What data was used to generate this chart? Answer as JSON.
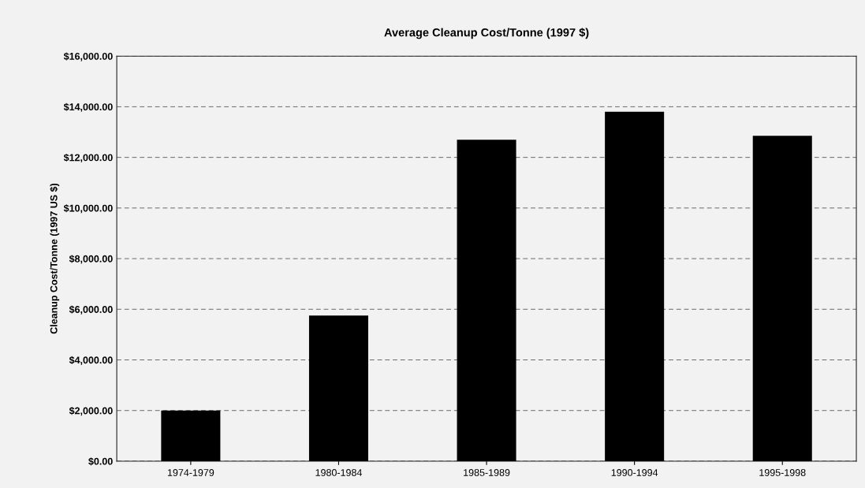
{
  "chart_data": {
    "type": "bar",
    "title": "Average Cleanup Cost/Tonne (1997 $)",
    "ylabel": "Cleanup Cost/Tonne (1997 US $)",
    "categories": [
      "1974-1979",
      "1980-1984",
      "1985-1989",
      "1990-1994",
      "1995-1998"
    ],
    "values": [
      2000,
      5750,
      12700,
      13800,
      12850
    ],
    "color": "#000000",
    "ylim": [
      0,
      16000
    ],
    "yticks": [
      {
        "value": 0,
        "label": "$0.00"
      },
      {
        "value": 2000,
        "label": "$2,000.00"
      },
      {
        "value": 4000,
        "label": "$4,000.00"
      },
      {
        "value": 6000,
        "label": "$6,000.00"
      },
      {
        "value": 8000,
        "label": "$8,000.00"
      },
      {
        "value": 10000,
        "label": "$10,000.00"
      },
      {
        "value": 12000,
        "label": "$12,000.00"
      },
      {
        "value": 14000,
        "label": "$14,000.00"
      },
      {
        "value": 16000,
        "label": "$16,000.00"
      }
    ],
    "grid": "y"
  }
}
